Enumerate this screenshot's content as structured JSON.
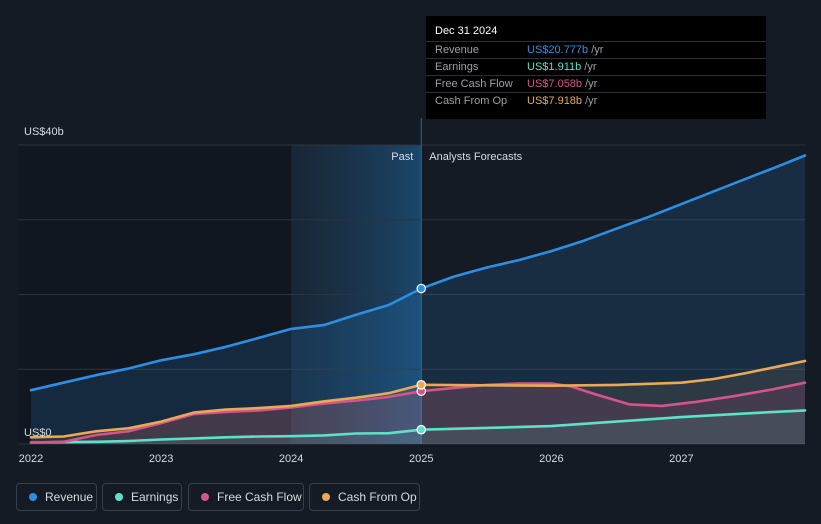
{
  "chart_data": {
    "type": "line",
    "y_unit_top": "US$40b",
    "y_unit_bottom": "US$0",
    "ylim": [
      0,
      40
    ],
    "xlim": [
      2021.9,
      2027.95
    ],
    "x_ticks": [
      2022,
      2023,
      2024,
      2025,
      2026,
      2027
    ],
    "x_tick_labels": [
      "2022",
      "2023",
      "2024",
      "2025",
      "2026",
      "2027"
    ],
    "past_label": "Past",
    "forecast_label": "Analysts Forecasts",
    "past_range": [
      2024.0,
      2025.0
    ],
    "series": [
      {
        "name": "Revenue",
        "color": "#2d8fe3",
        "x": [
          2022.0,
          2022.25,
          2022.5,
          2022.75,
          2023.0,
          2023.25,
          2023.5,
          2023.75,
          2024.0,
          2024.25,
          2024.5,
          2024.75,
          2025.0,
          2025.25,
          2025.5,
          2025.75,
          2026.0,
          2026.25,
          2026.5,
          2026.75,
          2027.0,
          2027.25,
          2027.5,
          2027.75,
          2027.95
        ],
        "values": [
          7.2,
          8.2,
          9.2,
          10.1,
          11.2,
          12.0,
          13.0,
          14.2,
          15.4,
          15.9,
          17.3,
          18.6,
          20.8,
          22.4,
          23.6,
          24.6,
          25.8,
          27.2,
          28.8,
          30.4,
          32.1,
          33.8,
          35.5,
          37.2,
          38.6
        ]
      },
      {
        "name": "Earnings",
        "color": "#5fe0c8",
        "x": [
          2022.0,
          2022.25,
          2022.5,
          2022.75,
          2023.0,
          2023.25,
          2023.5,
          2023.75,
          2024.0,
          2024.25,
          2024.5,
          2024.75,
          2025.0,
          2025.5,
          2026.0,
          2026.5,
          2027.0,
          2027.5,
          2027.95
        ],
        "values": [
          0.2,
          0.25,
          0.3,
          0.4,
          0.6,
          0.75,
          0.9,
          1.0,
          1.05,
          1.15,
          1.4,
          1.45,
          1.91,
          2.15,
          2.4,
          3.0,
          3.6,
          4.1,
          4.5
        ]
      },
      {
        "name": "Free Cash Flow",
        "color": "#d5548b",
        "x": [
          2022.0,
          2022.25,
          2022.5,
          2022.75,
          2023.0,
          2023.25,
          2023.5,
          2023.75,
          2024.0,
          2024.25,
          2024.5,
          2024.75,
          2025.0,
          2025.25,
          2025.5,
          2025.75,
          2026.0,
          2026.15,
          2026.35,
          2026.6,
          2026.85,
          2027.1,
          2027.4,
          2027.7,
          2027.95
        ],
        "values": [
          0.2,
          0.3,
          1.2,
          1.7,
          2.8,
          4.0,
          4.3,
          4.5,
          4.9,
          5.4,
          5.8,
          6.3,
          7.06,
          7.5,
          7.9,
          8.1,
          8.1,
          7.7,
          6.6,
          5.3,
          5.1,
          5.6,
          6.4,
          7.3,
          8.2
        ]
      },
      {
        "name": "Cash From Op",
        "color": "#e9a956",
        "x": [
          2022.0,
          2022.25,
          2022.5,
          2022.75,
          2023.0,
          2023.25,
          2023.5,
          2023.75,
          2024.0,
          2024.25,
          2024.5,
          2024.75,
          2025.0,
          2025.5,
          2026.0,
          2026.5,
          2027.0,
          2027.25,
          2027.5,
          2027.75,
          2027.95
        ],
        "values": [
          0.9,
          1.0,
          1.7,
          2.1,
          3.0,
          4.2,
          4.6,
          4.8,
          5.1,
          5.7,
          6.2,
          6.8,
          7.92,
          7.85,
          7.8,
          7.9,
          8.2,
          8.7,
          9.5,
          10.4,
          11.1
        ]
      }
    ],
    "tooltip": {
      "date": "Dec 31 2024",
      "rows": [
        {
          "label": "Revenue",
          "value": "US$20.777b",
          "unit": "/yr",
          "color": "#2d8fe3"
        },
        {
          "label": "Earnings",
          "value": "US$1.911b",
          "unit": "/yr",
          "color": "#5fe0c8"
        },
        {
          "label": "Free Cash Flow",
          "value": "US$7.058b",
          "unit": "/yr",
          "color": "#d5548b"
        },
        {
          "label": "Cash From Op",
          "value": "US$7.918b",
          "unit": "/yr",
          "color": "#e9a956"
        }
      ]
    },
    "highlight_x": 2025.0,
    "legend": [
      {
        "label": "Revenue",
        "color": "#2d8fe3"
      },
      {
        "label": "Earnings",
        "color": "#5fe0c8"
      },
      {
        "label": "Free Cash Flow",
        "color": "#d5548b"
      },
      {
        "label": "Cash From Op",
        "color": "#e9a956"
      }
    ]
  }
}
